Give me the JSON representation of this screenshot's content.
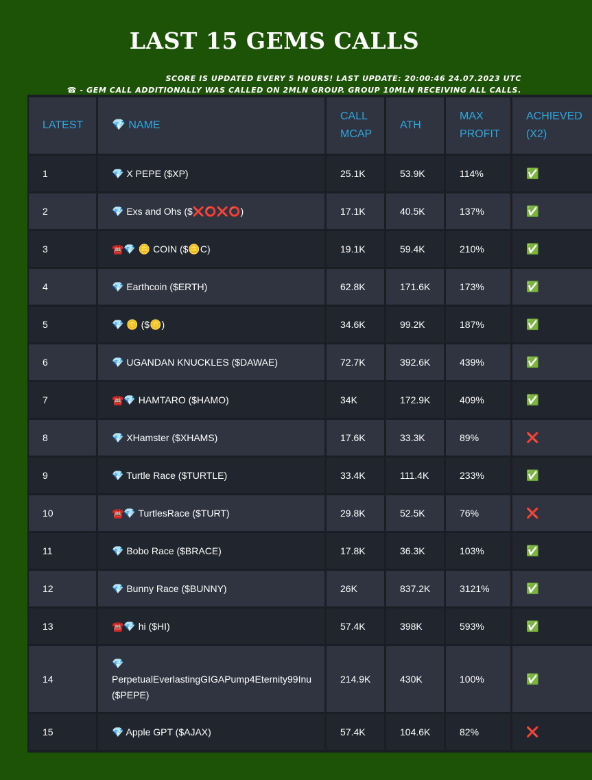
{
  "page": {
    "title": "LAST 15 GEMS CALLS",
    "notes": [
      "Score is updated every 5 hours! Last update: 20:00:46 24.07.2023 UTC",
      "☎ - GEM call additionally was called on 2mln group. Group 10mln receiving all calls."
    ]
  },
  "colors": {
    "background": "#1d5307",
    "header_text": "#2ea8df",
    "row_dark": "#21252e",
    "row_light": "#2f3440"
  },
  "table": {
    "headers": [
      "Latest",
      "💎 Name",
      "Call Mcap",
      "ATH",
      "Max Profit",
      "Achieved (x2)"
    ],
    "rows": [
      [
        "1",
        "💎 X PEPE ($XP)",
        "25.1K",
        "53.9K",
        "114%",
        "✅"
      ],
      [
        "2",
        "💎 Exs and Ohs ($❌⭕❌⭕)",
        "17.1K",
        "40.5K",
        "137%",
        "✅"
      ],
      [
        "3",
        "☎️💎 🪙 COIN ($🪙C)",
        "19.1K",
        "59.4K",
        "210%",
        "✅"
      ],
      [
        "4",
        "💎 Earthcoin ($ERTH)",
        "62.8K",
        "171.6K",
        "173%",
        "✅"
      ],
      [
        "5",
        "💎 🪙 ($🪙)",
        "34.6K",
        "99.2K",
        "187%",
        "✅"
      ],
      [
        "6",
        "💎 UGANDAN KNUCKLES ($DAWAE)",
        "72.7K",
        "392.6K",
        "439%",
        "✅"
      ],
      [
        "7",
        "☎️💎 HAMTARO ($HAMO)",
        "34K",
        "172.9K",
        "409%",
        "✅"
      ],
      [
        "8",
        "💎 XHamster ($XHAMS)",
        "17.6K",
        "33.3K",
        "89%",
        "❌"
      ],
      [
        "9",
        "💎 Turtle Race ($TURTLE)",
        "33.4K",
        "111.4K",
        "233%",
        "✅"
      ],
      [
        "10",
        "☎️💎 TurtlesRace ($TURT)",
        "29.8K",
        "52.5K",
        "76%",
        "❌"
      ],
      [
        "11",
        "💎 Bobo Race ($BRACE)",
        "17.8K",
        "36.3K",
        "103%",
        "✅"
      ],
      [
        "12",
        "💎 Bunny Race ($BUNNY)",
        "26K",
        "837.2K",
        "3121%",
        "✅"
      ],
      [
        "13",
        "☎️💎 hi ($HI)",
        "57.4K",
        "398K",
        "593%",
        "✅"
      ],
      [
        "14",
        "💎 PerpetualEverlastingGIGAPump4Eternity99Inu ($PEPE)",
        "214.9K",
        "430K",
        "100%",
        "✅"
      ],
      [
        "15",
        "💎 Apple GPT ($AJAX)",
        "57.4K",
        "104.6K",
        "82%",
        "❌"
      ]
    ]
  }
}
